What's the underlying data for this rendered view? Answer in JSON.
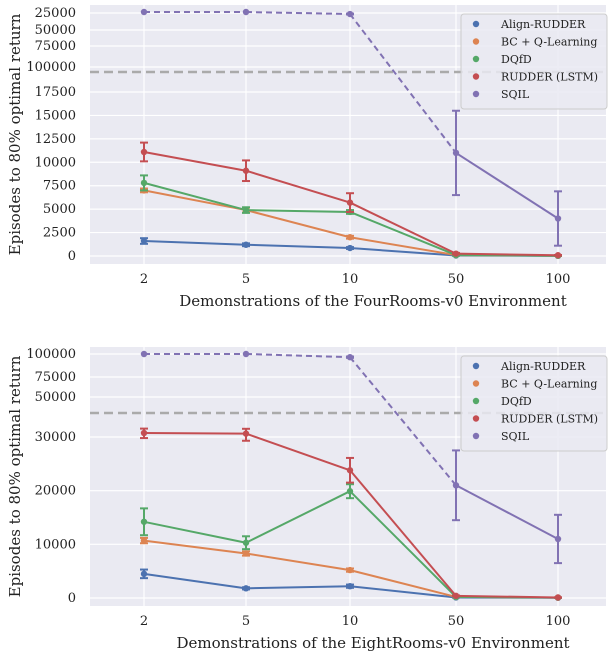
{
  "chart_data": [
    {
      "type": "line",
      "title": "",
      "xlabel": "Demonstrations of the FourRooms-v0 Environment",
      "ylabel": "Episodes to 80% optimal return",
      "categories": [
        "2",
        "5",
        "10",
        "50",
        "100"
      ],
      "upper_ticks": [
        "100000",
        "75000",
        "50000",
        "25000"
      ],
      "lower_ticks": [
        "0",
        "2500",
        "5000",
        "7500",
        "10000",
        "12500",
        "15000",
        "17500"
      ],
      "dashed_threshold_label": "",
      "series": [
        {
          "name": "Align-RUDDER",
          "color": "#4c72b0",
          "values": [
            1600,
            1200,
            850,
            50,
            20
          ],
          "err": [
            300,
            150,
            100,
            30,
            10
          ]
        },
        {
          "name": "BC + Q-Learning",
          "color": "#dd8452",
          "values": [
            7000,
            4900,
            2000,
            100,
            30
          ],
          "err": [
            200,
            250,
            150,
            50,
            20
          ]
        },
        {
          "name": "DQfD",
          "color": "#55a868",
          "values": [
            7800,
            4900,
            4700,
            100,
            30
          ],
          "err": [
            800,
            300,
            200,
            50,
            20
          ]
        },
        {
          "name": "RUDDER (LSTM)",
          "color": "#c44e52",
          "values": [
            11100,
            9100,
            5700,
            250,
            80
          ],
          "err": [
            1000,
            1100,
            1000,
            80,
            30
          ]
        },
        {
          "name": "SQIL",
          "color": "#8172b3",
          "values": [
            100000,
            100000,
            95000,
            11000,
            4000
          ],
          "err": [
            0,
            0,
            1000,
            4500,
            2900
          ],
          "dashed_until_index": 3
        }
      ]
    },
    {
      "type": "line",
      "title": "",
      "xlabel": "Demonstrations of the EightRooms-v0 Environment",
      "ylabel": "Episodes to 80% optimal return",
      "categories": [
        "2",
        "5",
        "10",
        "50",
        "100"
      ],
      "upper_ticks": [
        "100000",
        "75000",
        "50000"
      ],
      "lower_ticks": [
        "0",
        "10000",
        "20000",
        "30000"
      ],
      "dashed_threshold_label": "",
      "series": [
        {
          "name": "Align-RUDDER",
          "color": "#4c72b0",
          "values": [
            4500,
            1800,
            2200,
            100,
            50
          ],
          "err": [
            800,
            200,
            300,
            50,
            20
          ]
        },
        {
          "name": "BC + Q-Learning",
          "color": "#dd8452",
          "values": [
            10700,
            8300,
            5200,
            200,
            80
          ],
          "err": [
            500,
            400,
            300,
            50,
            20
          ]
        },
        {
          "name": "DQfD",
          "color": "#55a868",
          "values": [
            14200,
            10300,
            19900,
            200,
            80
          ],
          "err": [
            2500,
            1200,
            1300,
            50,
            20
          ]
        },
        {
          "name": "RUDDER (LSTM)",
          "color": "#c44e52",
          "values": [
            32000,
            31700,
            23800,
            400,
            100
          ],
          "err": [
            2200,
            2400,
            2300,
            80,
            30
          ]
        },
        {
          "name": "SQIL",
          "color": "#8172b3",
          "values": [
            100000,
            100000,
            95000,
            21000,
            11000
          ],
          "err": [
            0,
            0,
            1000,
            6500,
            4500
          ],
          "dashed_until_index": 3
        }
      ]
    }
  ]
}
